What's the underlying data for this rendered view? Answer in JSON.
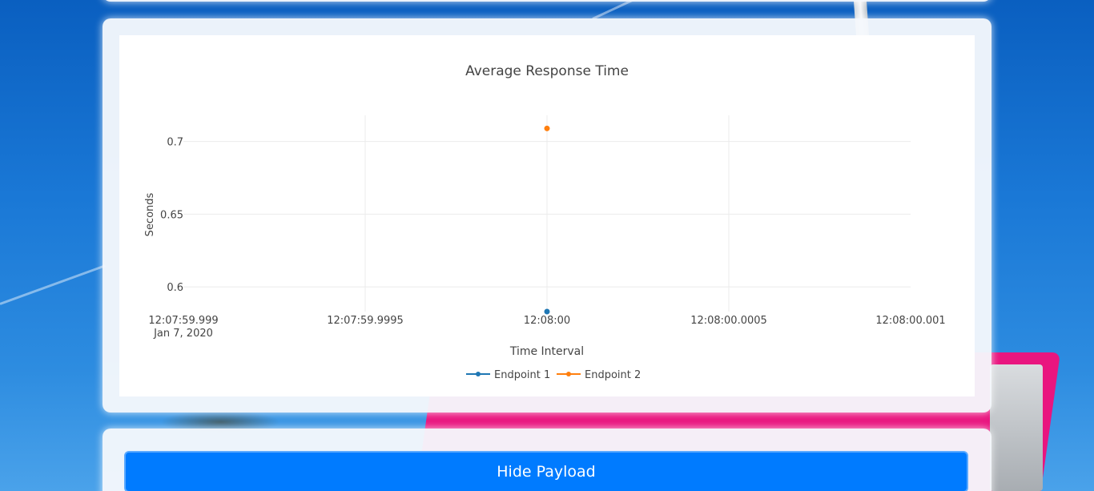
{
  "chart_data": {
    "type": "scatter",
    "title": "Average Response Time",
    "xlabel": "Time Interval",
    "ylabel": "Seconds",
    "x_tick_labels": [
      "12:07:59.999",
      "12:07:59.9995",
      "12:08:00",
      "12:08:00.0005",
      "12:08:00.001"
    ],
    "x_tick_sublabel": "Jan 7, 2020",
    "y_ticks": [
      0.6,
      0.65,
      0.7
    ],
    "y_tick_labels": [
      "0.6",
      "0.65",
      "0.7"
    ],
    "ylim": [
      0.583,
      0.718
    ],
    "legend_position": "bottom-center",
    "grid": true,
    "series": [
      {
        "name": "Endpoint 1",
        "color": "#1f77b4",
        "x": [
          "12:08:00"
        ],
        "y": [
          0.583
        ]
      },
      {
        "name": "Endpoint 2",
        "color": "#ff7f0e",
        "x": [
          "12:08:00"
        ],
        "y": [
          0.709
        ]
      }
    ]
  },
  "payload_button": {
    "label": "Hide Payload"
  }
}
